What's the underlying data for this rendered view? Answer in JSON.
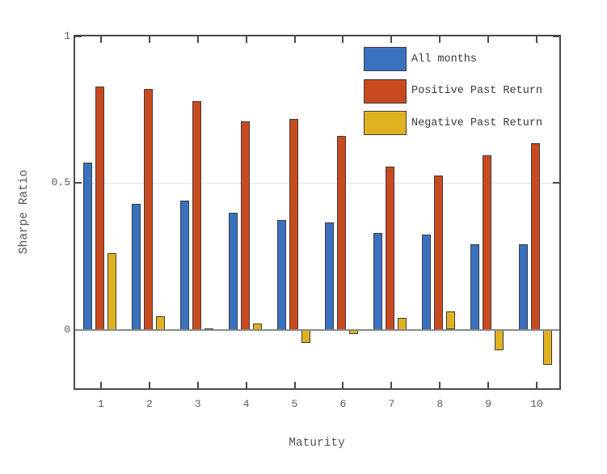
{
  "chart_data": {
    "type": "bar",
    "title": "",
    "xlabel": "Maturity",
    "ylabel": "Sharpe Ratio",
    "categories": [
      1,
      2,
      3,
      4,
      5,
      6,
      7,
      8,
      9,
      10
    ],
    "series": [
      {
        "name": "All months",
        "color": "#3971BF",
        "values": [
          0.57,
          0.43,
          0.44,
          0.4,
          0.375,
          0.365,
          0.33,
          0.325,
          0.29,
          0.29
        ]
      },
      {
        "name": "Positive Past Return",
        "color": "#C94A1E",
        "values": [
          0.83,
          0.82,
          0.78,
          0.71,
          0.72,
          0.66,
          0.555,
          0.525,
          0.595,
          0.635
        ]
      },
      {
        "name": "Negative Past Return",
        "color": "#E0B221",
        "values": [
          0.26,
          0.045,
          0.005,
          0.02,
          -0.045,
          -0.015,
          0.04,
          0.062,
          -0.07,
          -0.12
        ]
      }
    ],
    "ylim": [
      -0.2,
      1.0
    ],
    "yticks": [
      0,
      0.5,
      1
    ],
    "ytick_labels": [
      "0",
      "0.5",
      "1"
    ],
    "gridlines_y": [
      0.5
    ],
    "zero_line_y": 0,
    "grid": "single light horizontal gridline at 0.5; dark baseline at 0",
    "legend_position": "inside top-right, no frame"
  },
  "style": {
    "background": "#FFFFFF",
    "axis_color": "#4A4A4A",
    "bar_edge_color": "#3C3C3C",
    "zero_line_color": "#8A8A8A",
    "gridline_color": "#E2E2E2",
    "tick_label_color": "#5C5C5C",
    "axis_title_color": "#555555",
    "legend_text_color": "#3A3A3A"
  }
}
